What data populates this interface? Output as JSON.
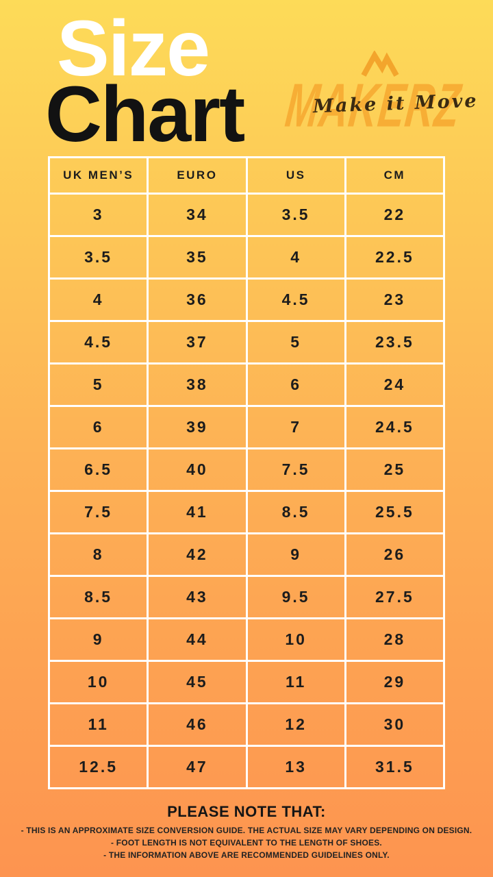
{
  "title": {
    "line1": "Size",
    "line2": "Chart"
  },
  "logo": {
    "icon": "mountain-m-icon",
    "brand": "MAKERZ",
    "tagline": "Make it Move"
  },
  "chart_data": {
    "type": "table",
    "title": "Size Chart",
    "columns": [
      "UK MEN’S",
      "EURO",
      "US",
      "CM"
    ],
    "rows": [
      [
        "3",
        "34",
        "3.5",
        "22"
      ],
      [
        "3.5",
        "35",
        "4",
        "22.5"
      ],
      [
        "4",
        "36",
        "4.5",
        "23"
      ],
      [
        "4.5",
        "37",
        "5",
        "23.5"
      ],
      [
        "5",
        "38",
        "6",
        "24"
      ],
      [
        "6",
        "39",
        "7",
        "24.5"
      ],
      [
        "6.5",
        "40",
        "7.5",
        "25"
      ],
      [
        "7.5",
        "41",
        "8.5",
        "25.5"
      ],
      [
        "8",
        "42",
        "9",
        "26"
      ],
      [
        "8.5",
        "43",
        "9.5",
        "27.5"
      ],
      [
        "9",
        "44",
        "10",
        "28"
      ],
      [
        "10",
        "45",
        "11",
        "29"
      ],
      [
        "11",
        "46",
        "12",
        "30"
      ],
      [
        "12.5",
        "47",
        "13",
        "31.5"
      ]
    ]
  },
  "footer": {
    "title": "PLEASE NOTE THAT:",
    "notes": [
      "- THIS IS AN APPROXIMATE SIZE CONVERSION GUIDE. THE ACTUAL SIZE MAY VARY DEPENDING ON DESIGN.",
      "- FOOT LENGTH IS NOT EQUIVALENT TO THE LENGTH OF SHOES.",
      "- THE INFORMATION ABOVE ARE RECOMMENDED GUIDELINES ONLY."
    ]
  },
  "colors": {
    "gradient_top": "#FDDB58",
    "gradient_middle": "#FDB155",
    "gradient_bottom": "#FD9450",
    "title_size": "#FFFFFF",
    "title_chart": "#121212",
    "brand_orange": "#F39820",
    "tagline_brown": "#3A2A12",
    "table_border": "#FFFFFF",
    "text_black": "#1C1C1C"
  }
}
